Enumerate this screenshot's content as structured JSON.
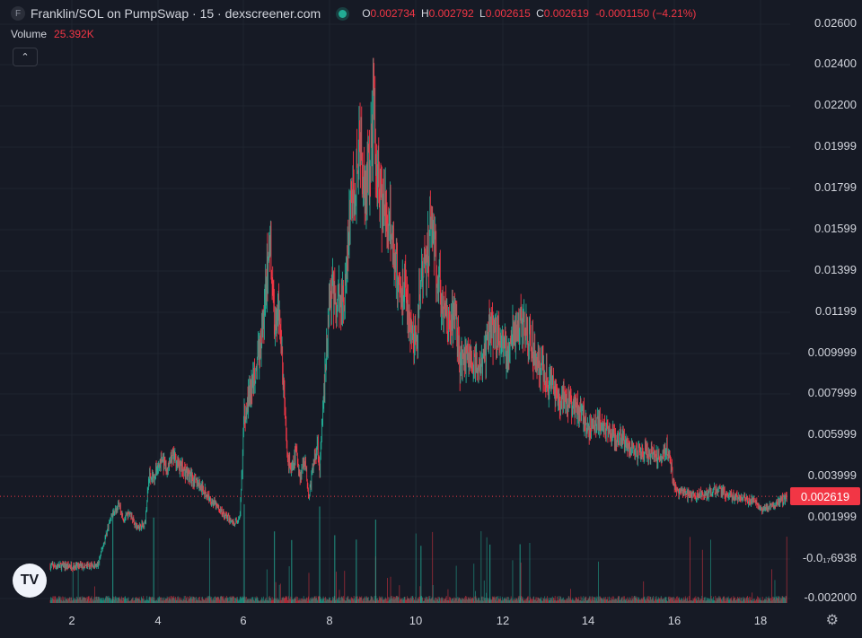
{
  "header": {
    "symbol_badge": "F",
    "title": "Franklin/SOL on PumpSwap · 15 · dexscreener.com",
    "ohlc": {
      "o_label": "O",
      "o": "0.002734",
      "h_label": "H",
      "h": "0.002792",
      "l_label": "L",
      "l": "0.002615",
      "c_label": "C",
      "c": "0.002619",
      "change": "-0.0001150 (−4.21%)"
    }
  },
  "volume": {
    "label": "Volume",
    "value": "25.392K"
  },
  "collapse_icon": "chevron-up-icon",
  "y_axis": [
    "0.02600",
    "0.02400",
    "0.02200",
    "0.01999",
    "0.01799",
    "0.01599",
    "0.01399",
    "0.01199",
    "0.009999",
    "0.007999",
    "0.005999",
    "0.003999",
    "0.001999",
    "-0.0₁₇6938",
    "-0.002000"
  ],
  "current_price": "0.002619",
  "x_axis": [
    "2",
    "4",
    "6",
    "8",
    "10",
    "12",
    "14",
    "16",
    "18"
  ],
  "logo_text": "TV",
  "settings_icon": "gear-icon",
  "colors": {
    "background": "#161a25",
    "up": "#22ab94",
    "down": "#f23645",
    "grid": "#1f2430"
  },
  "chart_data": {
    "type": "line",
    "xlabel": "",
    "ylabel": "",
    "ylim": [
      -0.002,
      0.026
    ],
    "x": [
      1.5,
      1.9,
      2.3,
      2.6,
      2.9,
      3.1,
      3.2,
      3.35,
      3.5,
      3.7,
      3.8,
      3.9,
      4.0,
      4.1,
      4.2,
      4.35,
      4.5,
      4.6,
      4.75,
      4.9,
      5.0,
      5.2,
      5.5,
      5.75,
      5.9,
      6.0,
      6.1,
      6.2,
      6.3,
      6.45,
      6.55,
      6.6,
      6.7,
      6.8,
      6.9,
      7.0,
      7.1,
      7.2,
      7.3,
      7.4,
      7.5,
      7.6,
      7.7,
      7.75,
      7.9,
      8.0,
      8.1,
      8.3,
      8.45,
      8.6,
      8.7,
      8.8,
      8.9,
      9.0,
      9.05,
      9.1,
      9.2,
      9.35,
      9.5,
      9.6,
      9.7,
      9.8,
      9.9,
      10.0,
      10.05,
      10.2,
      10.35,
      10.5,
      10.6,
      10.75,
      10.9,
      11.0,
      11.2,
      11.35,
      11.5,
      11.7,
      11.9,
      12.1,
      12.3,
      12.5,
      12.75,
      13.0,
      13.25,
      13.5,
      13.8,
      14.0,
      14.2,
      14.5,
      14.8,
      15.0,
      15.3,
      15.5,
      15.7,
      15.8,
      16.0,
      16.4,
      16.8,
      17.0,
      17.4,
      17.8,
      18.0,
      18.3,
      18.6
    ],
    "close": [
      -0.0008,
      -0.0008,
      -0.0008,
      -0.0008,
      0.0016,
      0.0022,
      0.0015,
      0.0018,
      0.0011,
      0.0013,
      0.0038,
      0.0035,
      0.0041,
      0.0044,
      0.0038,
      0.0046,
      0.0041,
      0.0039,
      0.0036,
      0.0033,
      0.0031,
      0.0025,
      0.0018,
      0.0013,
      0.0015,
      0.0066,
      0.0075,
      0.0081,
      0.0092,
      0.0112,
      0.0143,
      0.0155,
      0.0111,
      0.012,
      0.0084,
      0.0046,
      0.0038,
      0.0048,
      0.0036,
      0.0046,
      0.0026,
      0.0041,
      0.0053,
      0.0039,
      0.0095,
      0.0126,
      0.0124,
      0.0118,
      0.016,
      0.0188,
      0.0196,
      0.0176,
      0.0189,
      0.0213,
      0.0195,
      0.0182,
      0.0168,
      0.016,
      0.0146,
      0.0124,
      0.0131,
      0.0118,
      0.0105,
      0.0099,
      0.0121,
      0.0142,
      0.0158,
      0.0132,
      0.0122,
      0.0109,
      0.0117,
      0.0092,
      0.0096,
      0.0091,
      0.0087,
      0.011,
      0.0103,
      0.0096,
      0.011,
      0.0109,
      0.0095,
      0.0085,
      0.0074,
      0.0072,
      0.007,
      0.0058,
      0.0063,
      0.0056,
      0.0053,
      0.0049,
      0.0048,
      0.0047,
      0.0045,
      0.0052,
      0.0029,
      0.0026,
      0.0028,
      0.0029,
      0.0026,
      0.0024,
      0.002,
      0.0022,
      0.0026
    ]
  }
}
